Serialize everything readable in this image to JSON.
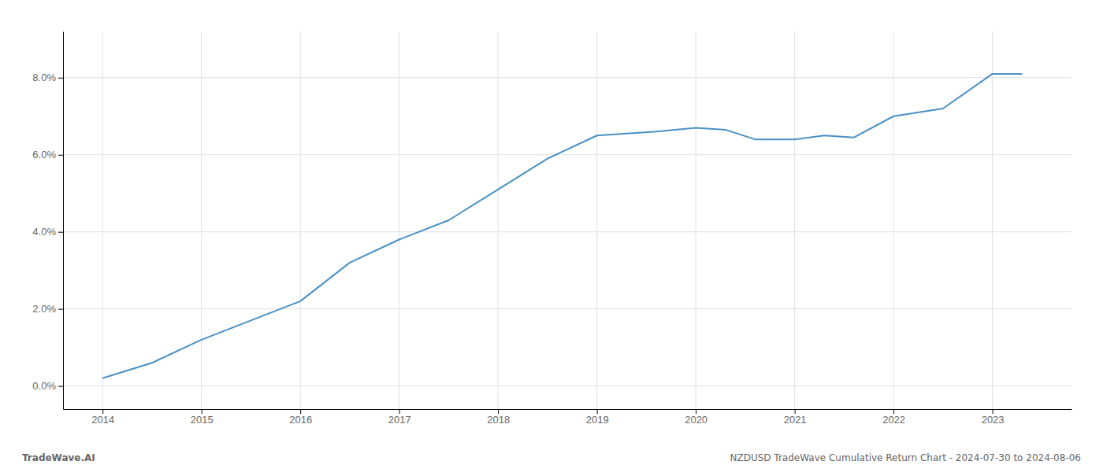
{
  "chart_data": {
    "type": "line",
    "x": [
      2014.0,
      2014.5,
      2015.0,
      2015.5,
      2016.0,
      2016.5,
      2017.0,
      2017.5,
      2018.0,
      2018.5,
      2019.0,
      2019.3,
      2019.6,
      2020.0,
      2020.3,
      2020.6,
      2021.0,
      2021.3,
      2021.6,
      2022.0,
      2022.5,
      2023.0,
      2023.3
    ],
    "values": [
      0.002,
      0.006,
      0.012,
      0.017,
      0.022,
      0.032,
      0.038,
      0.043,
      0.051,
      0.059,
      0.065,
      0.0655,
      0.066,
      0.067,
      0.0665,
      0.064,
      0.064,
      0.065,
      0.0645,
      0.07,
      0.072,
      0.081,
      0.081
    ],
    "color": "#4a90c4",
    "xlim": [
      2013.6,
      2023.8
    ],
    "xticks": [
      2014,
      2015,
      2016,
      2017,
      2018,
      2019,
      2020,
      2021,
      2022,
      2023
    ],
    "ylim": [
      -0.006,
      0.092
    ],
    "yticks": [
      {
        "value": 0.0,
        "label": "0.0%"
      },
      {
        "value": 0.02,
        "label": "2.0%"
      },
      {
        "value": 0.04,
        "label": "4.0%"
      },
      {
        "value": 0.06,
        "label": "6.0%"
      },
      {
        "value": 0.08,
        "label": "8.0%"
      }
    ],
    "grid": true,
    "annotations": [
      "TradeWave.AI",
      "NZDUSD TradeWave Cumulative Return Chart - 2024-07-30 to 2024-08-06"
    ]
  }
}
